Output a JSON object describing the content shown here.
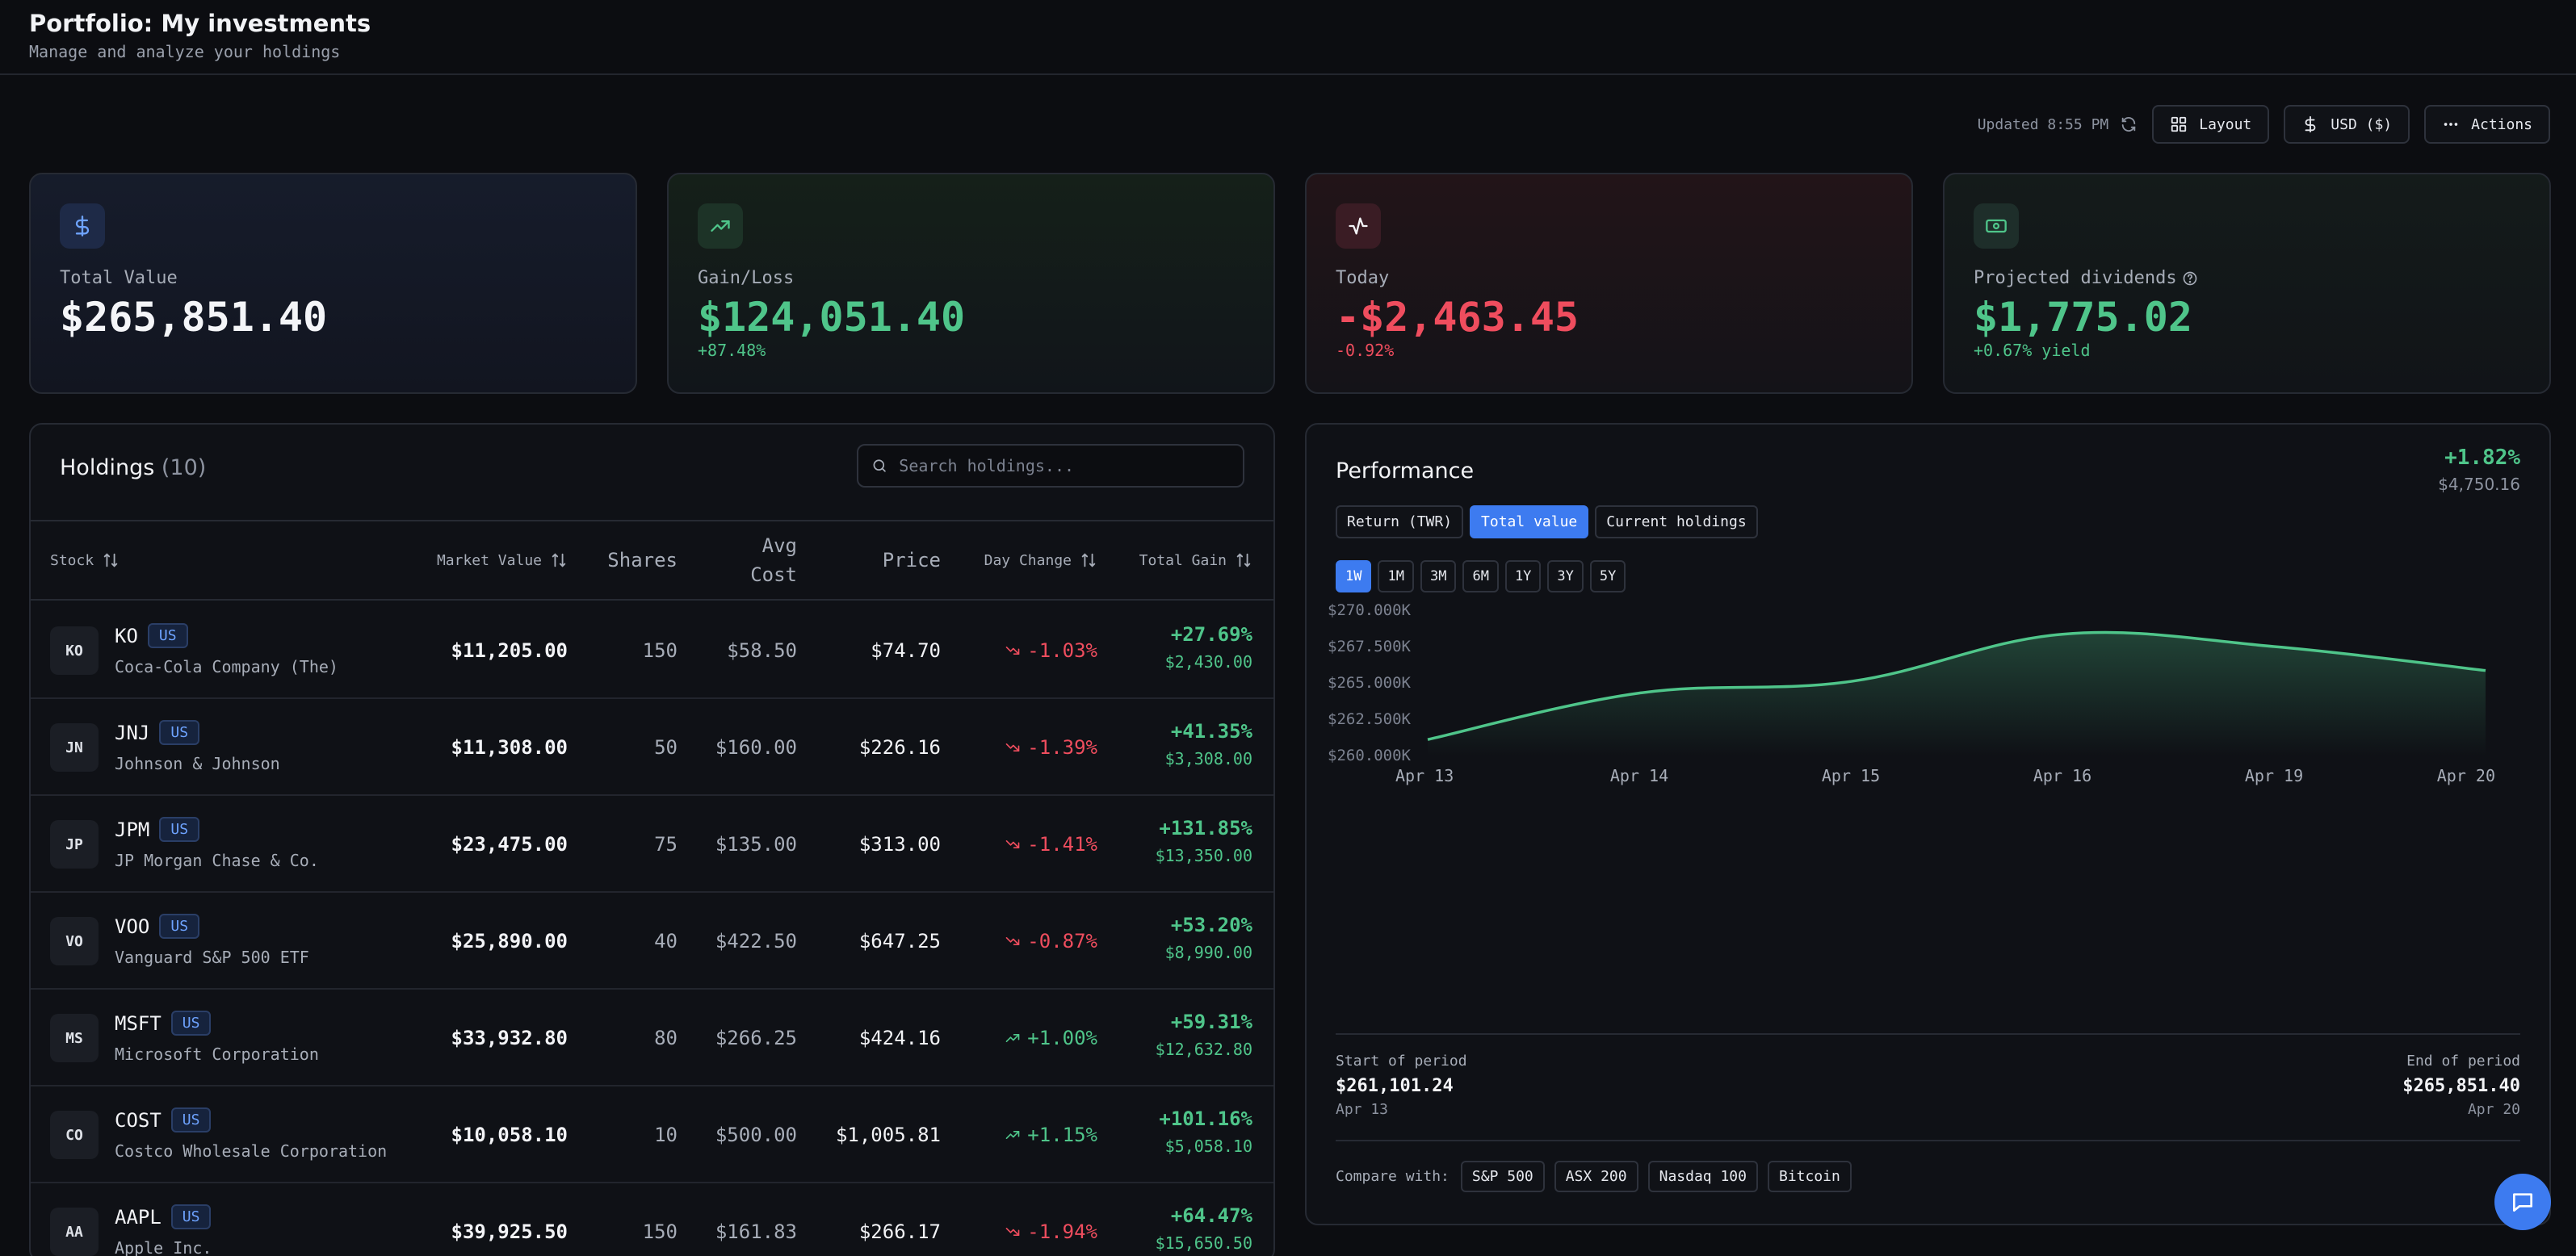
{
  "header": {
    "title": "Portfolio: My investments",
    "subtitle": "Manage and analyze your holdings"
  },
  "toolbar": {
    "updated": "Updated 8:55 PM",
    "layout_label": "Layout",
    "currency_label": "USD ($)",
    "actions_label": "Actions"
  },
  "stats": {
    "total_value": {
      "label": "Total Value",
      "value": "$265,851.40",
      "icon": "dollar-icon"
    },
    "gain_loss": {
      "label": "Gain/Loss",
      "value": "$124,051.40",
      "sub": "+87.48%",
      "icon": "trending-up-icon"
    },
    "today": {
      "label": "Today",
      "value": "-$2,463.45",
      "sub": "-0.92%",
      "icon": "activity-icon"
    },
    "dividends": {
      "label": "Projected dividends",
      "value": "$1,775.02",
      "sub": "+0.67% yield",
      "icon": "banknote-icon"
    }
  },
  "holdings": {
    "title": "Holdings",
    "count": "(10)",
    "search_placeholder": "Search holdings...",
    "columns": {
      "stock": "Stock",
      "market_value": "Market Value",
      "shares": "Shares",
      "avg_cost_1": "Avg",
      "avg_cost_2": "Cost",
      "price": "Price",
      "day_change": "Day Change",
      "total_gain": "Total Gain"
    },
    "rows": [
      {
        "avatar": "KO",
        "ticker": "KO",
        "badge": "US",
        "name": "Coca-Cola Company (The)",
        "market_value": "$11,205.00",
        "shares": "150",
        "avg_cost": "$58.50",
        "price": "$74.70",
        "day_change": "-1.03%",
        "day_dir": "down",
        "gain_pct": "+27.69%",
        "gain_amt": "$2,430.00"
      },
      {
        "avatar": "JN",
        "ticker": "JNJ",
        "badge": "US",
        "name": "Johnson & Johnson",
        "market_value": "$11,308.00",
        "shares": "50",
        "avg_cost": "$160.00",
        "price": "$226.16",
        "day_change": "-1.39%",
        "day_dir": "down",
        "gain_pct": "+41.35%",
        "gain_amt": "$3,308.00"
      },
      {
        "avatar": "JP",
        "ticker": "JPM",
        "badge": "US",
        "name": "JP Morgan Chase & Co.",
        "market_value": "$23,475.00",
        "shares": "75",
        "avg_cost": "$135.00",
        "price": "$313.00",
        "day_change": "-1.41%",
        "day_dir": "down",
        "gain_pct": "+131.85%",
        "gain_amt": "$13,350.00"
      },
      {
        "avatar": "VO",
        "ticker": "VOO",
        "badge": "US",
        "name": "Vanguard S&P 500 ETF",
        "market_value": "$25,890.00",
        "shares": "40",
        "avg_cost": "$422.50",
        "price": "$647.25",
        "day_change": "-0.87%",
        "day_dir": "down",
        "gain_pct": "+53.20%",
        "gain_amt": "$8,990.00"
      },
      {
        "avatar": "MS",
        "ticker": "MSFT",
        "badge": "US",
        "name": "Microsoft Corporation",
        "market_value": "$33,932.80",
        "shares": "80",
        "avg_cost": "$266.25",
        "price": "$424.16",
        "day_change": "+1.00%",
        "day_dir": "up",
        "gain_pct": "+59.31%",
        "gain_amt": "$12,632.80"
      },
      {
        "avatar": "CO",
        "ticker": "COST",
        "badge": "US",
        "name": "Costco Wholesale Corporation",
        "market_value": "$10,058.10",
        "shares": "10",
        "avg_cost": "$500.00",
        "price": "$1,005.81",
        "day_change": "+1.15%",
        "day_dir": "up",
        "gain_pct": "+101.16%",
        "gain_amt": "$5,058.10"
      },
      {
        "avatar": "AA",
        "ticker": "AAPL",
        "badge": "US",
        "name": "Apple Inc.",
        "market_value": "$39,925.50",
        "shares": "150",
        "avg_cost": "$161.83",
        "price": "$266.17",
        "day_change": "-1.94%",
        "day_dir": "down",
        "gain_pct": "+64.47%",
        "gain_amt": "$15,650.50"
      }
    ]
  },
  "performance": {
    "title": "Performance",
    "change_pct": "+1.82%",
    "change_amt": "$4,750.16",
    "modes": [
      "Return (TWR)",
      "Total value",
      "Current holdings"
    ],
    "active_mode": "Total value",
    "ranges": [
      "1W",
      "1M",
      "3M",
      "6M",
      "1Y",
      "3Y",
      "5Y"
    ],
    "active_range": "1W",
    "start_label": "Start of period",
    "start_value": "$261,101.24",
    "start_date": "Apr 13",
    "end_label": "End of period",
    "end_value": "$265,851.40",
    "end_date": "Apr 20",
    "compare_label": "Compare with:",
    "compare_options": [
      "S&P 500",
      "ASX 200",
      "Nasdaq 100",
      "Bitcoin"
    ]
  },
  "chart_data": {
    "type": "area",
    "x": [
      "Apr 13",
      "Apr 14",
      "Apr 15",
      "Apr 16",
      "Apr 19",
      "Apr 20"
    ],
    "y": [
      261101.24,
      264300,
      265100,
      268350,
      267500,
      265851.4
    ],
    "ytick_labels": [
      "$270.000K",
      "$267.500K",
      "$265.000K",
      "$262.500K",
      "$260.000K"
    ],
    "ylim": [
      260000,
      270000
    ],
    "line_color": "#4fc58a"
  },
  "colors": {
    "accent": "#3d7bf0",
    "positive": "#4fc58a",
    "negative": "#ef4d5e",
    "background": "#0c0d11"
  }
}
